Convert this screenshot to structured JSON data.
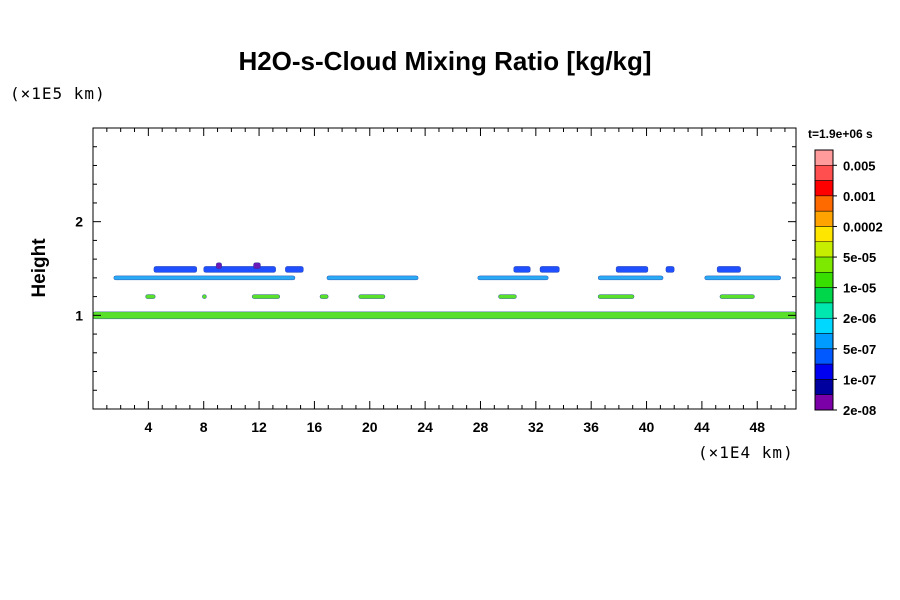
{
  "chart_data": {
    "type": "heatmap",
    "title": "H2O-s-Cloud Mixing Ratio [kg/kg]",
    "ylabel": "Height",
    "x_unit": "(×1E4 km)",
    "y_unit": "(×1E5 km)",
    "time_label": "t=1.9e+06 s",
    "xlim": [
      0,
      50.8
    ],
    "ylim": [
      0,
      3.0
    ],
    "x_ticks": [
      "4",
      "8",
      "12",
      "16",
      "20",
      "24",
      "28",
      "32",
      "36",
      "40",
      "44",
      "48"
    ],
    "y_ticks": [
      "1",
      "2"
    ],
    "colorbar": {
      "labels": [
        "0.005",
        "0.001",
        "0.0002",
        "5e-05",
        "1e-05",
        "2e-06",
        "5e-07",
        "1e-07",
        "2e-08"
      ],
      "colors": [
        "#ff9b9b",
        "#ff4f4f",
        "#ff0000",
        "#ff6a00",
        "#ffa300",
        "#ffe600",
        "#c6ee00",
        "#7de800",
        "#37de00",
        "#00d64a",
        "#00e8b0",
        "#00d8ff",
        "#009cff",
        "#0058ff",
        "#0000f0",
        "#00009e",
        "#7b00a8"
      ]
    },
    "features": [
      {
        "level": "5e-07",
        "color": "#2aa9f5",
        "y": 1.4,
        "segments": [
          [
            1.5,
            14.6
          ],
          [
            16.9,
            23.5
          ],
          [
            27.8,
            32.9
          ],
          [
            36.5,
            41.2
          ],
          [
            44.2,
            49.7
          ]
        ]
      },
      {
        "level": "1e-07",
        "color": "#1f4fff",
        "y": 1.49,
        "segments": [
          [
            4.4,
            7.5
          ],
          [
            8.0,
            13.2
          ],
          [
            13.9,
            15.2
          ],
          [
            30.4,
            31.6
          ],
          [
            32.3,
            33.7
          ],
          [
            37.8,
            40.1
          ],
          [
            41.4,
            42.0
          ],
          [
            45.1,
            46.8
          ]
        ]
      },
      {
        "level": "2e-08",
        "color": "#6a1ab8",
        "y": 1.53,
        "segments": [
          [
            11.6,
            12.1
          ],
          [
            8.9,
            9.3
          ]
        ]
      },
      {
        "level": "1e-05",
        "color": "#58e02a",
        "y": 1.0,
        "segments": [
          [
            0.0,
            50.8
          ]
        ]
      },
      {
        "level": "1e-05",
        "color": "#58e02a",
        "y": 1.2,
        "segments": [
          [
            11.5,
            13.5
          ],
          [
            16.4,
            17.0
          ],
          [
            19.2,
            21.1
          ],
          [
            29.3,
            30.6
          ],
          [
            36.5,
            39.1
          ],
          [
            45.3,
            47.8
          ],
          [
            3.8,
            4.5
          ],
          [
            7.9,
            8.2
          ]
        ]
      }
    ]
  }
}
